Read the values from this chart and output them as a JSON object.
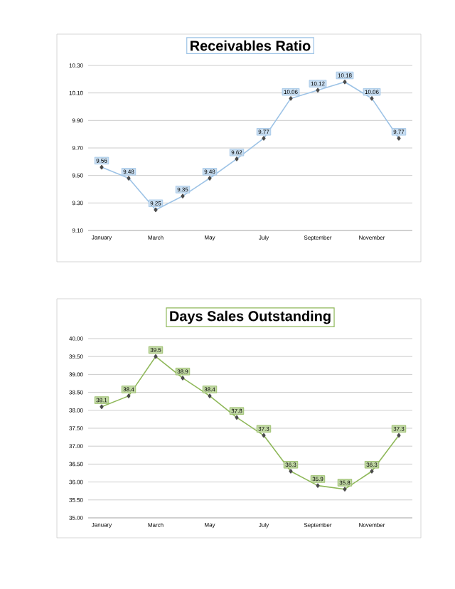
{
  "chart_data": [
    {
      "type": "line",
      "title": "Receivables Ratio",
      "categories": [
        "January",
        null,
        "March",
        null,
        "May",
        null,
        "July",
        null,
        "September",
        null,
        "November",
        null
      ],
      "series": [
        {
          "color": "#9dc3e6",
          "values": [
            9.56,
            9.48,
            9.25,
            9.35,
            9.48,
            9.62,
            9.77,
            10.06,
            10.12,
            10.18,
            10.06,
            9.77
          ]
        }
      ],
      "ylim": [
        9.1,
        10.3
      ],
      "yticks": [
        {
          "value": 9.1,
          "label": "9.10"
        },
        {
          "value": 9.3,
          "label": "9.30"
        },
        {
          "value": 9.5,
          "label": "9.50"
        },
        {
          "value": 9.7,
          "label": "9.70"
        },
        {
          "value": 9.9,
          "label": "9.90"
        },
        {
          "value": 10.1,
          "label": "10.10"
        },
        {
          "value": 10.3,
          "label": "10.30"
        }
      ],
      "grid": "y",
      "marker": "diamond",
      "data_labels": true
    },
    {
      "type": "line",
      "title": "Days Sales Outstanding",
      "categories": [
        "January",
        null,
        "March",
        null,
        "May",
        null,
        "July",
        null,
        "September",
        null,
        "November",
        null
      ],
      "series": [
        {
          "color": "#8fb85a",
          "values": [
            38.1,
            38.4,
            39.5,
            38.9,
            38.4,
            37.8,
            37.3,
            36.3,
            35.9,
            35.8,
            36.3,
            37.3
          ]
        }
      ],
      "ylim": [
        35,
        40
      ],
      "yticks": [
        {
          "value": 35,
          "label": "35.00"
        },
        {
          "value": 35.5,
          "label": "35.50"
        },
        {
          "value": 36,
          "label": "36.00"
        },
        {
          "value": 36.5,
          "label": "36.50"
        },
        {
          "value": 37,
          "label": "37.00"
        },
        {
          "value": 37.5,
          "label": "37.50"
        },
        {
          "value": 38,
          "label": "38.00"
        },
        {
          "value": 38.5,
          "label": "38.50"
        },
        {
          "value": 39,
          "label": "39.00"
        },
        {
          "value": 39.5,
          "label": "39.50"
        },
        {
          "value": 40,
          "label": "40.00"
        }
      ],
      "grid": "y",
      "marker": "diamond",
      "data_labels": true
    }
  ]
}
